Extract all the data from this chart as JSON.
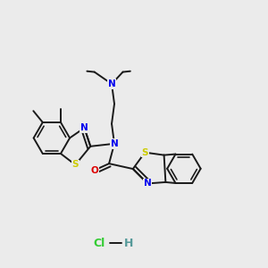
{
  "bg_color": "#ebebeb",
  "bond_color": "#1a1a1a",
  "bond_width": 1.4,
  "atom_colors": {
    "N": "#0000ee",
    "S": "#cccc00",
    "O": "#dd0000",
    "C": "#1a1a1a",
    "Cl": "#33cc33",
    "H_color": "#559999"
  },
  "fs": 7.5,
  "sfs": 6.2
}
